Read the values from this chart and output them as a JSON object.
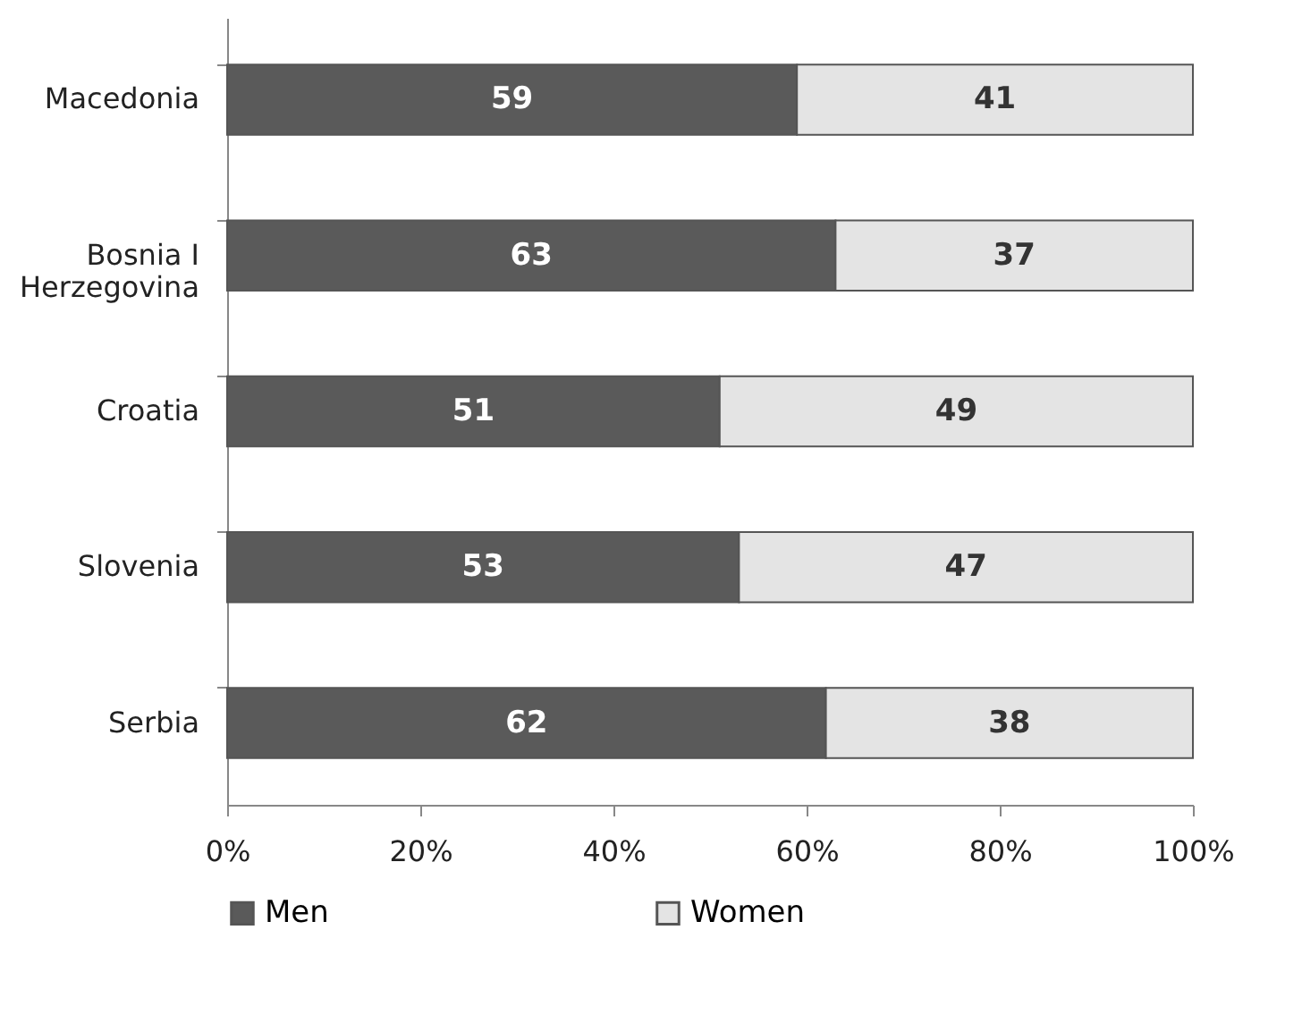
{
  "chart_data": {
    "type": "bar",
    "orientation": "horizontal",
    "stacked": true,
    "categories": [
      "Macedonia",
      "Bosnia I Herzegovina",
      "Croatia",
      "Slovenia",
      "Serbia"
    ],
    "series": [
      {
        "name": "Men",
        "color": "#5a5a5a",
        "values": [
          59,
          63,
          51,
          53,
          62
        ]
      },
      {
        "name": "Women",
        "color": "#e4e4e4",
        "values": [
          41,
          37,
          49,
          47,
          38
        ]
      }
    ],
    "xlim": [
      0,
      100
    ],
    "xticks": [
      {
        "value": 0,
        "label": "0%"
      },
      {
        "value": 20,
        "label": "20%"
      },
      {
        "value": 40,
        "label": "40%"
      },
      {
        "value": 60,
        "label": "60%"
      },
      {
        "value": 80,
        "label": "80%"
      },
      {
        "value": 100,
        "label": "100%"
      }
    ],
    "data_labels": true,
    "legend": "bottom",
    "grid": false
  }
}
